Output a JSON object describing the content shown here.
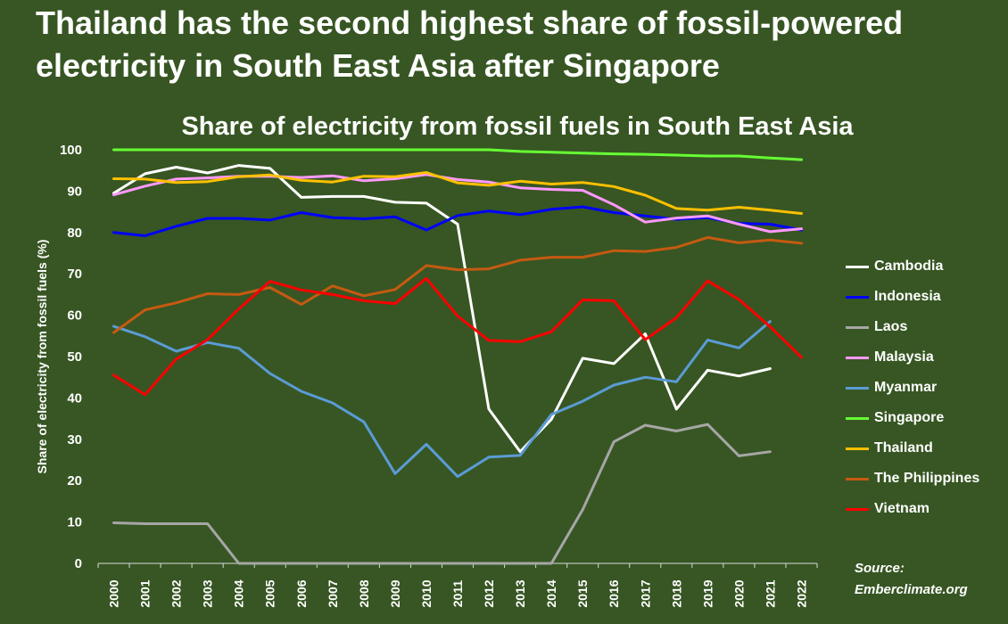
{
  "headline": "Thailand has the second highest share of fossil-powered electricity in South East Asia after Singapore",
  "source": {
    "line1": "Source:",
    "line2": "Emberclimate.org"
  },
  "chart_data": {
    "type": "line",
    "title": "Share of electricity from fossil fuels in South East Asia",
    "xlabel": "",
    "ylabel": "Share of electricity from fossil fuels (%)",
    "ylim": [
      0,
      100
    ],
    "yticks": [
      0,
      10,
      20,
      30,
      40,
      50,
      60,
      70,
      80,
      90,
      100
    ],
    "grid": false,
    "legend_position": "right",
    "x": [
      "2000",
      "2001",
      "2002",
      "2003",
      "2004",
      "2005",
      "2006",
      "2007",
      "2008",
      "2009",
      "2010",
      "2011",
      "2012",
      "2013",
      "2014",
      "2015",
      "2016",
      "2017",
      "2018",
      "2019",
      "2020",
      "2021",
      "2022"
    ],
    "series": [
      {
        "name": "Cambodia",
        "color": "#ffffff",
        "values": [
          89.5,
          94.2,
          95.8,
          94.4,
          96.2,
          95.5,
          88.5,
          88.7,
          88.7,
          87.3,
          87.1,
          82.0,
          37.3,
          27.0,
          34.8,
          49.6,
          48.3,
          55.5,
          37.3,
          46.7,
          45.3,
          47.1,
          null
        ]
      },
      {
        "name": "Indonesia",
        "color": "#0000ff",
        "values": [
          80.0,
          79.2,
          81.5,
          83.4,
          83.4,
          83.0,
          84.8,
          83.6,
          83.3,
          83.8,
          80.6,
          84.1,
          85.2,
          84.3,
          85.6,
          86.2,
          84.8,
          84.0,
          83.2,
          83.6,
          82.2,
          82.0,
          80.6
        ]
      },
      {
        "name": "Laos",
        "color": "#a6a6a6",
        "values": [
          9.8,
          9.6,
          9.6,
          9.6,
          0,
          0,
          0,
          0,
          0,
          0,
          0,
          0,
          0,
          0,
          0,
          13.0,
          29.4,
          33.4,
          32.0,
          33.6,
          26.0,
          27.0,
          null
        ]
      },
      {
        "name": "Malaysia",
        "color": "#ff99ff",
        "values": [
          89.1,
          91.2,
          92.9,
          93.2,
          93.6,
          93.6,
          93.3,
          93.7,
          92.5,
          93.0,
          94.0,
          92.8,
          92.2,
          90.8,
          90.4,
          90.2,
          86.7,
          82.5,
          83.5,
          84.0,
          82.0,
          80.2,
          80.9
        ]
      },
      {
        "name": "Myanmar",
        "color": "#5b9bd5",
        "values": [
          57.3,
          54.8,
          51.3,
          53.4,
          52.0,
          45.9,
          41.6,
          38.8,
          34.2,
          21.7,
          28.8,
          21.0,
          25.7,
          26.1,
          36.0,
          39.2,
          43.1,
          45.0,
          43.9,
          54.0,
          52.1,
          58.5,
          null
        ]
      },
      {
        "name": "Singapore",
        "color": "#66ff33",
        "values": [
          100,
          100,
          100,
          100,
          100,
          100,
          100,
          100,
          100,
          100,
          100,
          100,
          100,
          99.6,
          99.4,
          99.2,
          99.0,
          98.9,
          98.7,
          98.5,
          98.5,
          98.0,
          97.6
        ]
      },
      {
        "name": "Thailand",
        "color": "#ffc000",
        "values": [
          93.0,
          92.9,
          92.1,
          92.3,
          93.5,
          93.9,
          92.6,
          92.2,
          93.6,
          93.5,
          94.5,
          92.0,
          91.4,
          92.4,
          91.7,
          92.1,
          91.1,
          89.0,
          85.8,
          85.4,
          86.1,
          85.4,
          84.6
        ]
      },
      {
        "name": "The Philippines",
        "color": "#c55a11",
        "values": [
          55.8,
          61.3,
          63.0,
          65.2,
          65.0,
          66.7,
          62.6,
          67.1,
          64.7,
          66.2,
          72.0,
          71.0,
          71.2,
          73.3,
          74.0,
          74.0,
          75.6,
          75.4,
          76.4,
          78.8,
          77.5,
          78.2,
          77.4
        ]
      },
      {
        "name": "Vietnam",
        "color": "#ff0000",
        "values": [
          45.5,
          40.8,
          49.4,
          54.1,
          61.5,
          68.2,
          66.1,
          65.0,
          63.5,
          62.8,
          68.9,
          59.8,
          53.9,
          53.6,
          56.0,
          63.7,
          63.5,
          54.1,
          59.4,
          68.3,
          63.8,
          57.2,
          49.8
        ]
      }
    ]
  }
}
